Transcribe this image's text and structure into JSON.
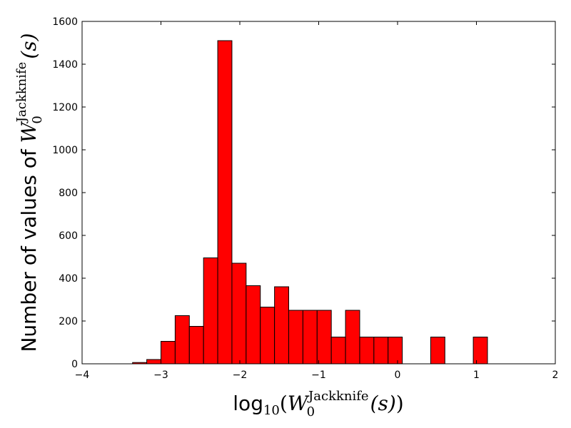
{
  "chart_data": {
    "type": "bar",
    "title": "",
    "xlabel": {
      "prefix": "log",
      "sub10": "10",
      "open": "(",
      "W": "W",
      "sub0": "0",
      "sup": "Jackknife",
      "arg": "(s)",
      "close": ")"
    },
    "ylabel": {
      "prefix": "Number of values of ",
      "W": "W",
      "sub0": "0",
      "sup": "Jackknife",
      "arg": "(s)"
    },
    "xlim": [
      -4,
      2
    ],
    "ylim": [
      0,
      1600
    ],
    "xticks": [
      "−4",
      "−3",
      "−2",
      "−1",
      "0",
      "1",
      "2"
    ],
    "yticks": [
      "0",
      "200",
      "400",
      "600",
      "800",
      "1000",
      "1200",
      "1400",
      "1600"
    ],
    "bar_color": "#ff0000",
    "edge_color": "#000000",
    "bin_width": 0.18,
    "bins": [
      {
        "x0": -3.36,
        "value": 6
      },
      {
        "x0": -3.18,
        "value": 20
      },
      {
        "x0": -3.0,
        "value": 105
      },
      {
        "x0": -2.82,
        "value": 225
      },
      {
        "x0": -2.64,
        "value": 175
      },
      {
        "x0": -2.46,
        "value": 495
      },
      {
        "x0": -2.28,
        "value": 1510
      },
      {
        "x0": -2.1,
        "value": 470
      },
      {
        "x0": -1.92,
        "value": 365
      },
      {
        "x0": -1.74,
        "value": 265
      },
      {
        "x0": -1.56,
        "value": 360
      },
      {
        "x0": -1.38,
        "value": 250
      },
      {
        "x0": -1.2,
        "value": 250
      },
      {
        "x0": -1.02,
        "value": 250
      },
      {
        "x0": -0.84,
        "value": 125
      },
      {
        "x0": -0.66,
        "value": 250
      },
      {
        "x0": -0.48,
        "value": 125
      },
      {
        "x0": -0.3,
        "value": 125
      },
      {
        "x0": -0.12,
        "value": 125
      },
      {
        "x0": 0.42,
        "value": 125
      },
      {
        "x0": 0.96,
        "value": 125
      }
    ],
    "grid": false,
    "legend": "none"
  }
}
